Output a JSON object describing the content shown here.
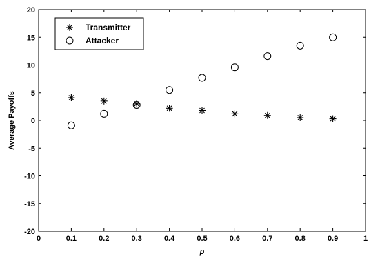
{
  "chart_data": {
    "type": "scatter",
    "xlabel": "ρ",
    "ylabel": "Average Payoffs",
    "xlim": [
      0,
      1
    ],
    "ylim": [
      -20,
      20
    ],
    "xticks": [
      0,
      0.1,
      0.2,
      0.3,
      0.4,
      0.5,
      0.6,
      0.7,
      0.8,
      0.9,
      1
    ],
    "yticks": [
      -20,
      -15,
      -10,
      -5,
      0,
      5,
      10,
      15,
      20
    ],
    "grid": false,
    "legend_position": "top-left",
    "series": [
      {
        "name": "Transmitter",
        "marker": "asterisk",
        "x": [
          0.1,
          0.2,
          0.3,
          0.4,
          0.5,
          0.6,
          0.7,
          0.8,
          0.9
        ],
        "y": [
          4.1,
          3.5,
          3.0,
          2.2,
          1.8,
          1.2,
          0.9,
          0.5,
          0.3
        ]
      },
      {
        "name": "Attacker",
        "marker": "circle",
        "x": [
          0.1,
          0.2,
          0.3,
          0.4,
          0.5,
          0.6,
          0.7,
          0.8,
          0.9
        ],
        "y": [
          -0.9,
          1.2,
          2.8,
          5.5,
          7.7,
          9.6,
          11.6,
          13.5,
          15.0
        ]
      }
    ],
    "colors": {
      "marker": "#000000",
      "axis": "#000000",
      "background": "#ffffff"
    }
  }
}
